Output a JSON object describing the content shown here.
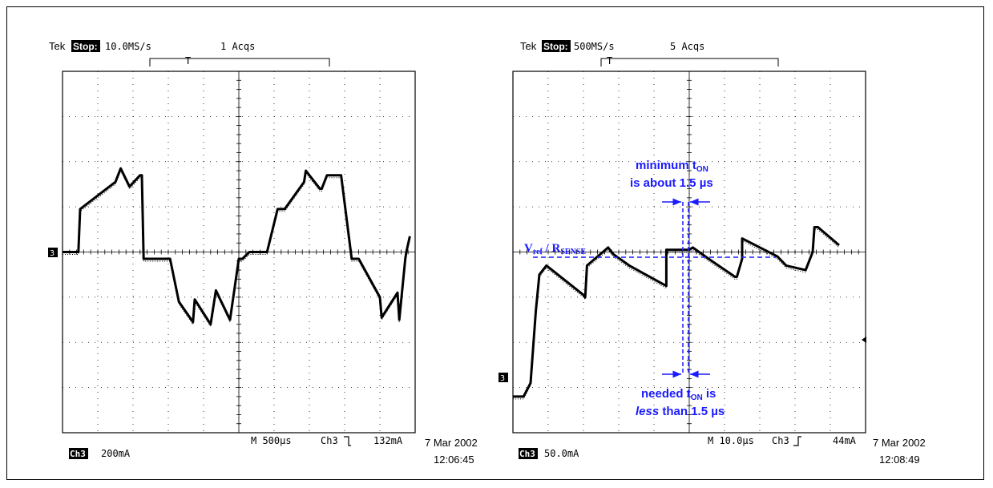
{
  "colors": {
    "trace": "#000000",
    "annotation": "#1a1aff",
    "grid": "#000000"
  },
  "scopes": [
    {
      "brand": "Tek",
      "state": "Stop:",
      "sample_rate": "10.0MS/s",
      "acqs": "1 Acqs",
      "trigger_marker": "T",
      "channel_marker": "3",
      "channel_label": "Ch3",
      "volts_per_div": "200mA",
      "timebase": "M 500µs",
      "trigger_channel": "Ch3",
      "trigger_slope_icon": "falling-edge-icon",
      "trigger_level": "132mA",
      "date": "7 Mar 2002",
      "time": "12:06:45"
    },
    {
      "brand": "Tek",
      "state": "Stop:",
      "sample_rate": "500MS/s",
      "acqs": "5 Acqs",
      "trigger_marker": "T",
      "channel_marker": "3",
      "channel_label": "Ch3",
      "volts_per_div": "50.0mA",
      "timebase": "M 10.0µs",
      "trigger_channel": "Ch3",
      "trigger_slope_icon": "rising-edge-icon",
      "trigger_level": "44mA",
      "date": "7 Mar 2002",
      "time": "12:08:49"
    }
  ],
  "annotations": {
    "vref_main": "V",
    "vref_sub": "ref",
    "vref_sep": " / R",
    "rsense_sub": "SENSE",
    "min_line1": "minimum t",
    "min_line1_sub": "ON",
    "min_line2": "is about 1.5 µs",
    "needed_line1_pre": "needed t",
    "needed_line1_sub": "ON",
    "needed_line1_post": " is",
    "needed_line2_italic": "less",
    "needed_line2_rest": " than 1.5 µs"
  },
  "chart_data": [
    {
      "type": "line",
      "title": "",
      "xlabel": "",
      "ylabel": "",
      "x_divisions": 10,
      "y_divisions": 8,
      "xlim": [
        0,
        10
      ],
      "ylim": [
        -4,
        4
      ],
      "grid": true,
      "series": [
        {
          "x": [
            0,
            0.4,
            0.45,
            0.5,
            1.5,
            1.65,
            1.9,
            2.2,
            2.25,
            2.3,
            2.9,
            3.0,
            3.05,
            3.3,
            3.7,
            3.75,
            4.2,
            4.35,
            4.75,
            5.0,
            5.05,
            5.1,
            5.3,
            5.55,
            5.8,
            6.1,
            6.15,
            6.25,
            6.3,
            6.85,
            6.9,
            7.3,
            7.35,
            7.5,
            7.9,
            8.2,
            8.25,
            8.35,
            8.4,
            9.0,
            9.05,
            9.5,
            9.55,
            9.72,
            9.75,
            9.85
          ],
          "y": [
            0,
            0,
            0,
            0.95,
            1.55,
            1.85,
            1.45,
            1.7,
            1.7,
            -0.15,
            -0.15,
            -0.15,
            -0.15,
            -1.1,
            -1.55,
            -1.05,
            -1.6,
            -0.85,
            -1.5,
            -0.15,
            -0.15,
            -0.15,
            0,
            0,
            0,
            0.95,
            0.95,
            0.95,
            0.95,
            1.55,
            1.8,
            1.4,
            1.4,
            1.7,
            1.7,
            -0.15,
            -0.15,
            -0.15,
            -0.15,
            -1.0,
            -1.45,
            -0.9,
            -1.5,
            -0.15,
            0,
            0.35
          ]
        }
      ]
    },
    {
      "type": "line",
      "title": "",
      "xlabel": "",
      "ylabel": "",
      "x_divisions": 10,
      "y_divisions": 8,
      "xlim": [
        0,
        10
      ],
      "ylim": [
        -4,
        4
      ],
      "grid": true,
      "series": [
        {
          "x": [
            0,
            0.25,
            0.3,
            0.5,
            0.65,
            0.75,
            0.95,
            2.0,
            2.05,
            2.1,
            2.7,
            2.85,
            3.3,
            4.35,
            4.35,
            4.4,
            5.0,
            5.1,
            5.55,
            6.3,
            6.35,
            6.5,
            6.5,
            7.5,
            7.75,
            8.3,
            8.5,
            8.55,
            8.65,
            9.25
          ],
          "y": [
            -3.2,
            -3.2,
            -3.2,
            -2.9,
            -1.3,
            -0.5,
            -0.3,
            -0.95,
            -1.0,
            -0.3,
            0.1,
            -0.05,
            -0.3,
            -0.75,
            0.05,
            0.05,
            0.05,
            0.1,
            -0.15,
            -0.55,
            -0.55,
            -0.15,
            0.3,
            -0.1,
            -0.3,
            -0.4,
            0,
            0.55,
            0.55,
            0.15
          ]
        }
      ]
    }
  ]
}
